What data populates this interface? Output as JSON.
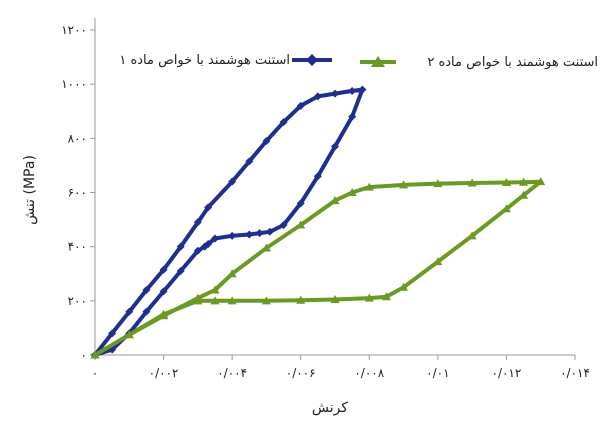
{
  "chart_data": {
    "type": "line",
    "xlabel": "کرنش",
    "ylabel": "تنش (MPa)",
    "xlim": [
      0,
      0.014
    ],
    "ylim": [
      0,
      1200
    ],
    "x_ticks": [
      0,
      0.002,
      0.004,
      0.006,
      0.008,
      0.01,
      0.012,
      0.014
    ],
    "x_tick_labels": [
      "۰",
      "۰/۰۰۲",
      "۰/۰۰۴",
      "۰/۰۰۶",
      "۰/۰۰۸",
      "۰/۰۱",
      "۰/۰۱۲",
      "۰/۰۱۴"
    ],
    "y_ticks": [
      0,
      200,
      400,
      600,
      800,
      1000,
      1200
    ],
    "y_tick_labels": [
      "۰",
      "۲۰۰",
      "۴۰۰",
      "۶۰۰",
      "۸۰۰",
      "۱۰۰۰",
      "۱۲۰۰"
    ],
    "grid": false,
    "legend_position": "top",
    "series": [
      {
        "name": "استنت هوشمند با خواص ماده ۱",
        "color": "#1f2f8f",
        "marker": "diamond",
        "x": [
          0,
          0.0005,
          0.001,
          0.0015,
          0.002,
          0.0025,
          0.003,
          0.0033,
          0.004,
          0.0045,
          0.005,
          0.0055,
          0.006,
          0.0065,
          0.007,
          0.0075,
          0.0078,
          0.0075,
          0.007,
          0.0065,
          0.006,
          0.0055,
          0.0051,
          0.0048,
          0.0045,
          0.004,
          0.0035,
          0.0033,
          0.0032,
          0.003,
          0.0025,
          0.002,
          0.0015,
          0.001,
          0.0005,
          0
        ],
        "y": [
          0,
          80,
          160,
          240,
          315,
          400,
          490,
          545,
          640,
          715,
          790,
          860,
          920,
          955,
          965,
          975,
          980,
          880,
          770,
          660,
          560,
          480,
          455,
          450,
          445,
          440,
          430,
          410,
          400,
          385,
          310,
          235,
          160,
          80,
          20,
          0
        ]
      },
      {
        "name": "استنت هوشمند با خواص ماده ۲",
        "color": "#6a9a1f",
        "marker": "triangle",
        "x": [
          0,
          0.001,
          0.002,
          0.003,
          0.0035,
          0.004,
          0.005,
          0.006,
          0.007,
          0.0075,
          0.008,
          0.009,
          0.01,
          0.011,
          0.012,
          0.0125,
          0.013,
          0.0125,
          0.012,
          0.011,
          0.01,
          0.009,
          0.0085,
          0.008,
          0.007,
          0.006,
          0.005,
          0.004,
          0.0035,
          0.003,
          0.002,
          0.001,
          0
        ],
        "y": [
          0,
          75,
          145,
          210,
          240,
          300,
          395,
          480,
          570,
          600,
          620,
          628,
          633,
          635,
          637,
          638,
          640,
          590,
          540,
          440,
          345,
          250,
          215,
          210,
          205,
          202,
          200,
          200,
          200,
          200,
          150,
          75,
          0
        ]
      }
    ]
  }
}
